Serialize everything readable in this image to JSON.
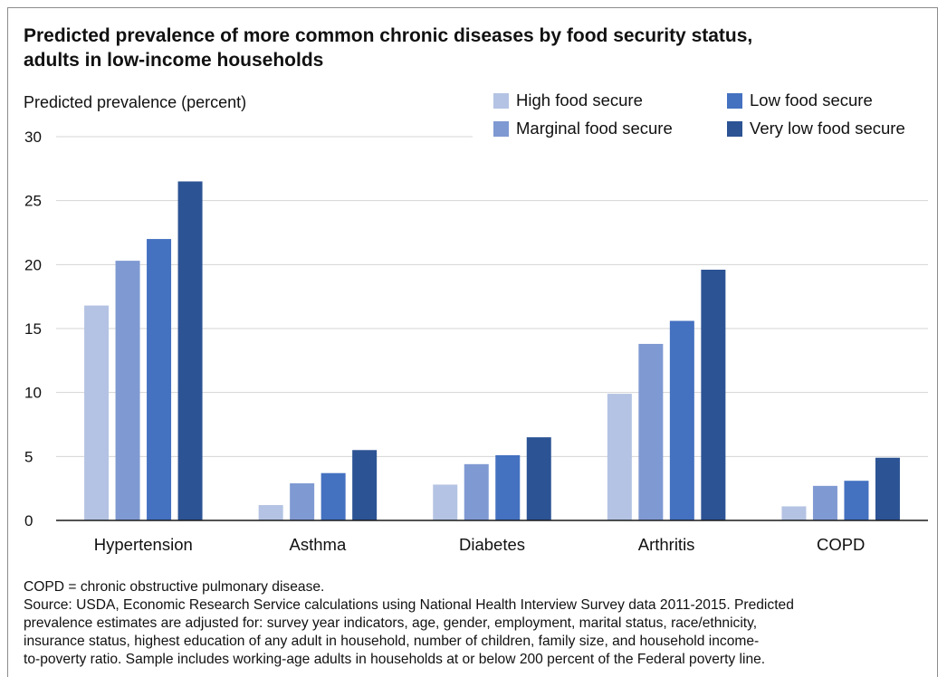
{
  "chart_data": {
    "type": "bar",
    "title": "Predicted prevalence of more common chronic diseases by food security status, adults in low-income households",
    "title_lines": [
      "Predicted prevalence of more common chronic diseases by food security status,",
      "adults in low-income households"
    ],
    "ylabel": "Predicted prevalence (percent)",
    "xlabel": "",
    "ylim": [
      0,
      30
    ],
    "yticks": [
      0,
      5,
      10,
      15,
      20,
      25,
      30
    ],
    "grid": true,
    "legend_position": "top-right",
    "categories": [
      "Hypertension",
      "Asthma",
      "Diabetes",
      "Arthritis",
      "COPD"
    ],
    "series": [
      {
        "name": "High food secure",
        "color": "#b4c3e3",
        "values": [
          16.8,
          1.2,
          2.8,
          9.9,
          1.1
        ]
      },
      {
        "name": "Marginal food secure",
        "color": "#7f99d2",
        "values": [
          20.3,
          2.9,
          4.4,
          13.8,
          2.7
        ]
      },
      {
        "name": "Low food secure",
        "color": "#4471c0",
        "values": [
          22.0,
          3.7,
          5.1,
          15.6,
          3.1
        ]
      },
      {
        "name": "Very low food secure",
        "color": "#2c5394",
        "values": [
          26.5,
          5.5,
          6.5,
          19.6,
          4.9
        ]
      }
    ]
  },
  "notes": {
    "abbreviation": "COPD = chronic obstructive pulmonary disease.",
    "source_lines": [
      "Source: USDA, Economic Research Service calculations using National Health Interview Survey data 2011-2015. Predicted",
      "prevalence estimates are adjusted for:  survey year indicators, age, gender, employment, marital status, race/ethnicity,",
      "insurance status, highest education of any adult in household, number of children, family size, and household income-",
      "to-poverty ratio. Sample includes working-age adults in households at or below 200 percent of the Federal poverty line."
    ]
  }
}
